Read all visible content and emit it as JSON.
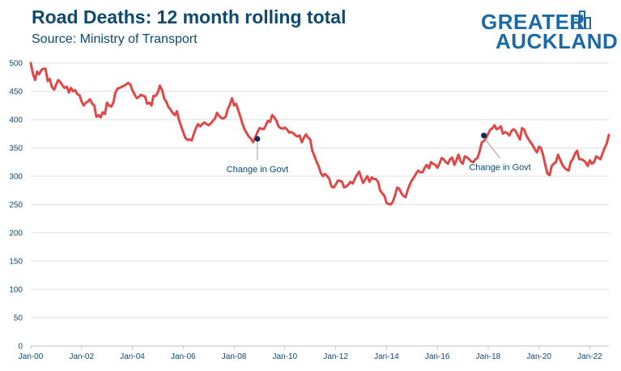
{
  "header": {
    "title": "Road Deaths: 12 month rolling total",
    "subtitle": "Source: Ministry of Transport"
  },
  "logo": {
    "line1": "GREATER",
    "line2": "AUCKLAND",
    "icon": "city-building-icon"
  },
  "colors": {
    "line": "#e04848",
    "text": "#0d4a6e",
    "grid": "#dcdcdc",
    "marker": "#0d3050",
    "brand": "#1a6aa8"
  },
  "chart_data": {
    "type": "line",
    "title": "Road Deaths: 12 month rolling total",
    "xlabel": "",
    "ylabel": "",
    "ylim": [
      0,
      500
    ],
    "yticks": [
      0,
      50,
      100,
      150,
      200,
      250,
      300,
      350,
      400,
      450,
      500
    ],
    "xlim": [
      2000.0,
      2022.75
    ],
    "xticks": [
      {
        "label": "Jan-00",
        "x": 2000
      },
      {
        "label": "Jan-02",
        "x": 2002
      },
      {
        "label": "Jan-04",
        "x": 2004
      },
      {
        "label": "Jan-06",
        "x": 2006
      },
      {
        "label": "Jan-08",
        "x": 2008
      },
      {
        "label": "Jan-10",
        "x": 2010
      },
      {
        "label": "Jan-12",
        "x": 2012
      },
      {
        "label": "Jan-14",
        "x": 2014
      },
      {
        "label": "Jan-16",
        "x": 2016
      },
      {
        "label": "Jan-18",
        "x": 2018
      },
      {
        "label": "Jan-20",
        "x": 2020
      },
      {
        "label": "Jan-22",
        "x": 2022
      }
    ],
    "grid": "horizontal",
    "series": [
      {
        "points": [
          [
            2000.0,
            500
          ],
          [
            2000.08,
            482
          ],
          [
            2000.17,
            470
          ],
          [
            2000.25,
            485
          ],
          [
            2000.33,
            480
          ],
          [
            2000.42,
            488
          ],
          [
            2000.5,
            490
          ],
          [
            2000.58,
            490
          ],
          [
            2000.67,
            468
          ],
          [
            2000.75,
            472
          ],
          [
            2000.83,
            458
          ],
          [
            2000.92,
            453
          ],
          [
            2001.0,
            462
          ],
          [
            2001.08,
            470
          ],
          [
            2001.17,
            466
          ],
          [
            2001.25,
            460
          ],
          [
            2001.33,
            456
          ],
          [
            2001.42,
            458
          ],
          [
            2001.5,
            448
          ],
          [
            2001.58,
            456
          ],
          [
            2001.67,
            450
          ],
          [
            2001.75,
            452
          ],
          [
            2001.83,
            445
          ],
          [
            2001.92,
            443
          ],
          [
            2002.0,
            432
          ],
          [
            2002.08,
            425
          ],
          [
            2002.17,
            430
          ],
          [
            2002.25,
            432
          ],
          [
            2002.33,
            436
          ],
          [
            2002.42,
            428
          ],
          [
            2002.5,
            425
          ],
          [
            2002.58,
            405
          ],
          [
            2002.67,
            408
          ],
          [
            2002.75,
            404
          ],
          [
            2002.83,
            413
          ],
          [
            2002.92,
            410
          ],
          [
            2003.0,
            430
          ],
          [
            2003.08,
            425
          ],
          [
            2003.17,
            423
          ],
          [
            2003.25,
            430
          ],
          [
            2003.33,
            448
          ],
          [
            2003.42,
            455
          ],
          [
            2003.5,
            456
          ],
          [
            2003.58,
            458
          ],
          [
            2003.67,
            460
          ],
          [
            2003.75,
            462
          ],
          [
            2003.83,
            465
          ],
          [
            2003.92,
            462
          ],
          [
            2004.0,
            452
          ],
          [
            2004.08,
            445
          ],
          [
            2004.17,
            438
          ],
          [
            2004.25,
            440
          ],
          [
            2004.33,
            444
          ],
          [
            2004.42,
            442
          ],
          [
            2004.5,
            441
          ],
          [
            2004.58,
            428
          ],
          [
            2004.67,
            430
          ],
          [
            2004.75,
            425
          ],
          [
            2004.83,
            442
          ],
          [
            2004.92,
            442
          ],
          [
            2005.0,
            448
          ],
          [
            2005.08,
            460
          ],
          [
            2005.17,
            452
          ],
          [
            2005.25,
            437
          ],
          [
            2005.33,
            432
          ],
          [
            2005.42,
            422
          ],
          [
            2005.5,
            418
          ],
          [
            2005.58,
            412
          ],
          [
            2005.67,
            408
          ],
          [
            2005.75,
            415
          ],
          [
            2005.83,
            400
          ],
          [
            2005.92,
            388
          ],
          [
            2006.0,
            378
          ],
          [
            2006.08,
            368
          ],
          [
            2006.17,
            364
          ],
          [
            2006.25,
            365
          ],
          [
            2006.33,
            363
          ],
          [
            2006.42,
            375
          ],
          [
            2006.5,
            385
          ],
          [
            2006.58,
            392
          ],
          [
            2006.67,
            388
          ],
          [
            2006.75,
            392
          ],
          [
            2006.83,
            395
          ],
          [
            2006.92,
            392
          ],
          [
            2007.0,
            390
          ],
          [
            2007.08,
            393
          ],
          [
            2007.17,
            398
          ],
          [
            2007.25,
            402
          ],
          [
            2007.33,
            412
          ],
          [
            2007.42,
            406
          ],
          [
            2007.5,
            403
          ],
          [
            2007.58,
            402
          ],
          [
            2007.67,
            405
          ],
          [
            2007.75,
            418
          ],
          [
            2007.83,
            426
          ],
          [
            2007.92,
            438
          ],
          [
            2008.0,
            425
          ],
          [
            2008.08,
            428
          ],
          [
            2008.17,
            416
          ],
          [
            2008.25,
            405
          ],
          [
            2008.33,
            393
          ],
          [
            2008.42,
            382
          ],
          [
            2008.5,
            376
          ],
          [
            2008.58,
            370
          ],
          [
            2008.67,
            366
          ],
          [
            2008.75,
            360
          ],
          [
            2008.83,
            368
          ],
          [
            2008.92,
            378
          ],
          [
            2009.0,
            385
          ],
          [
            2009.08,
            384
          ],
          [
            2009.17,
            383
          ],
          [
            2009.25,
            390
          ],
          [
            2009.33,
            398
          ],
          [
            2009.42,
            396
          ],
          [
            2009.5,
            408
          ],
          [
            2009.58,
            404
          ],
          [
            2009.67,
            398
          ],
          [
            2009.75,
            388
          ],
          [
            2009.83,
            385
          ],
          [
            2009.92,
            384
          ],
          [
            2010.0,
            386
          ],
          [
            2010.08,
            383
          ],
          [
            2010.17,
            377
          ],
          [
            2010.25,
            378
          ],
          [
            2010.33,
            376
          ],
          [
            2010.42,
            372
          ],
          [
            2010.5,
            370
          ],
          [
            2010.58,
            372
          ],
          [
            2010.67,
            360
          ],
          [
            2010.75,
            368
          ],
          [
            2010.83,
            374
          ],
          [
            2010.92,
            368
          ],
          [
            2011.0,
            365
          ],
          [
            2011.08,
            345
          ],
          [
            2011.17,
            335
          ],
          [
            2011.25,
            325
          ],
          [
            2011.33,
            318
          ],
          [
            2011.42,
            305
          ],
          [
            2011.5,
            300
          ],
          [
            2011.58,
            304
          ],
          [
            2011.67,
            300
          ],
          [
            2011.75,
            295
          ],
          [
            2011.83,
            282
          ],
          [
            2011.92,
            280
          ],
          [
            2012.0,
            285
          ],
          [
            2012.08,
            292
          ],
          [
            2012.17,
            292
          ],
          [
            2012.25,
            290
          ],
          [
            2012.33,
            280
          ],
          [
            2012.42,
            282
          ],
          [
            2012.5,
            285
          ],
          [
            2012.58,
            290
          ],
          [
            2012.67,
            287
          ],
          [
            2012.75,
            295
          ],
          [
            2012.83,
            302
          ],
          [
            2012.92,
            308
          ],
          [
            2013.0,
            298
          ],
          [
            2013.08,
            288
          ],
          [
            2013.17,
            295
          ],
          [
            2013.25,
            300
          ],
          [
            2013.33,
            290
          ],
          [
            2013.42,
            298
          ],
          [
            2013.5,
            295
          ],
          [
            2013.58,
            295
          ],
          [
            2013.67,
            290
          ],
          [
            2013.75,
            275
          ],
          [
            2013.83,
            270
          ],
          [
            2013.92,
            265
          ],
          [
            2014.0,
            253
          ],
          [
            2014.08,
            251
          ],
          [
            2014.17,
            250
          ],
          [
            2014.25,
            255
          ],
          [
            2014.33,
            265
          ],
          [
            2014.42,
            280
          ],
          [
            2014.5,
            278
          ],
          [
            2014.58,
            270
          ],
          [
            2014.67,
            265
          ],
          [
            2014.75,
            263
          ],
          [
            2014.83,
            275
          ],
          [
            2014.92,
            286
          ],
          [
            2015.0,
            293
          ],
          [
            2015.08,
            298
          ],
          [
            2015.17,
            305
          ],
          [
            2015.25,
            310
          ],
          [
            2015.33,
            307
          ],
          [
            2015.42,
            307
          ],
          [
            2015.5,
            315
          ],
          [
            2015.58,
            320
          ],
          [
            2015.67,
            314
          ],
          [
            2015.75,
            325
          ],
          [
            2015.83,
            322
          ],
          [
            2015.92,
            320
          ],
          [
            2016.0,
            315
          ],
          [
            2016.08,
            322
          ],
          [
            2016.17,
            332
          ],
          [
            2016.25,
            330
          ],
          [
            2016.33,
            325
          ],
          [
            2016.42,
            322
          ],
          [
            2016.5,
            330
          ],
          [
            2016.58,
            333
          ],
          [
            2016.67,
            320
          ],
          [
            2016.75,
            328
          ],
          [
            2016.83,
            338
          ],
          [
            2016.92,
            326
          ],
          [
            2017.0,
            322
          ],
          [
            2017.08,
            335
          ],
          [
            2017.17,
            333
          ],
          [
            2017.25,
            330
          ],
          [
            2017.33,
            326
          ],
          [
            2017.42,
            325
          ],
          [
            2017.5,
            330
          ],
          [
            2017.58,
            332
          ],
          [
            2017.67,
            345
          ],
          [
            2017.75,
            360
          ],
          [
            2017.83,
            362
          ],
          [
            2017.92,
            368
          ],
          [
            2018.0,
            375
          ],
          [
            2018.08,
            382
          ],
          [
            2018.17,
            385
          ],
          [
            2018.25,
            390
          ],
          [
            2018.33,
            383
          ],
          [
            2018.42,
            385
          ],
          [
            2018.5,
            388
          ],
          [
            2018.58,
            375
          ],
          [
            2018.67,
            378
          ],
          [
            2018.75,
            376
          ],
          [
            2018.83,
            372
          ],
          [
            2018.92,
            380
          ],
          [
            2019.0,
            383
          ],
          [
            2019.08,
            380
          ],
          [
            2019.17,
            372
          ],
          [
            2019.25,
            365
          ],
          [
            2019.33,
            385
          ],
          [
            2019.42,
            382
          ],
          [
            2019.5,
            372
          ],
          [
            2019.58,
            366
          ],
          [
            2019.67,
            360
          ],
          [
            2019.75,
            355
          ],
          [
            2019.83,
            348
          ],
          [
            2019.92,
            342
          ],
          [
            2020.0,
            352
          ],
          [
            2020.08,
            350
          ],
          [
            2020.17,
            336
          ],
          [
            2020.25,
            320
          ],
          [
            2020.33,
            305
          ],
          [
            2020.42,
            302
          ],
          [
            2020.5,
            318
          ],
          [
            2020.58,
            322
          ],
          [
            2020.67,
            325
          ],
          [
            2020.75,
            338
          ],
          [
            2020.83,
            330
          ],
          [
            2020.92,
            320
          ],
          [
            2021.0,
            315
          ],
          [
            2021.08,
            312
          ],
          [
            2021.17,
            310
          ],
          [
            2021.25,
            325
          ],
          [
            2021.33,
            330
          ],
          [
            2021.42,
            340
          ],
          [
            2021.5,
            345
          ],
          [
            2021.58,
            330
          ],
          [
            2021.67,
            330
          ],
          [
            2021.75,
            328
          ],
          [
            2021.83,
            325
          ],
          [
            2021.92,
            318
          ],
          [
            2022.0,
            328
          ],
          [
            2022.08,
            322
          ],
          [
            2022.17,
            325
          ],
          [
            2022.25,
            335
          ],
          [
            2022.33,
            333
          ],
          [
            2022.42,
            330
          ],
          [
            2022.5,
            340
          ],
          [
            2022.58,
            350
          ],
          [
            2022.67,
            358
          ],
          [
            2022.75,
            373
          ]
        ]
      }
    ],
    "annotations": [
      {
        "label": "Change in Govt",
        "x": 2008.92,
        "y": 366
      },
      {
        "label": "Change in Govt",
        "x": 2017.83,
        "y": 372
      }
    ]
  }
}
